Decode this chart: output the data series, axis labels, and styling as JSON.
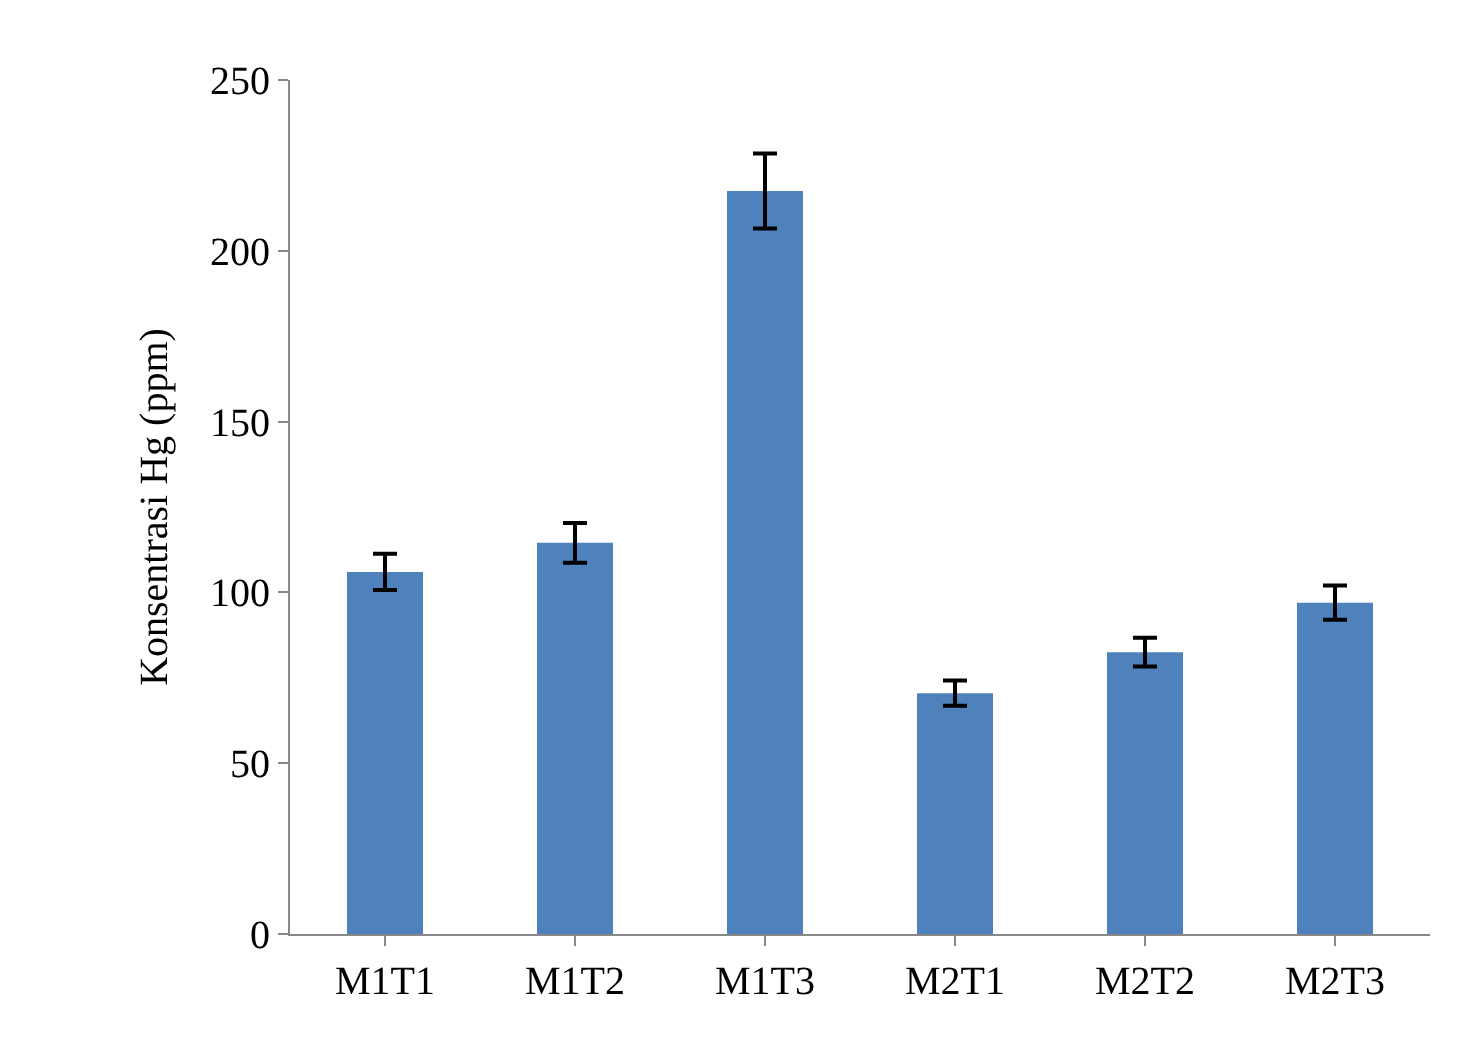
{
  "chart_data": {
    "type": "bar",
    "ylabel": "Konsentrasi Hg (ppm)",
    "categories": [
      "M1T1",
      "M1T2",
      "M1T3",
      "M2T1",
      "M2T2",
      "M2T3"
    ],
    "values": [
      106,
      114.5,
      217.5,
      70.5,
      82.5,
      97
    ],
    "errors": [
      5.3,
      5.8,
      11,
      3.7,
      4.2,
      5
    ],
    "color": "#4f81bd",
    "ylim": [
      0,
      250
    ],
    "yticks": [
      0,
      50,
      100,
      150,
      200,
      250
    ]
  }
}
